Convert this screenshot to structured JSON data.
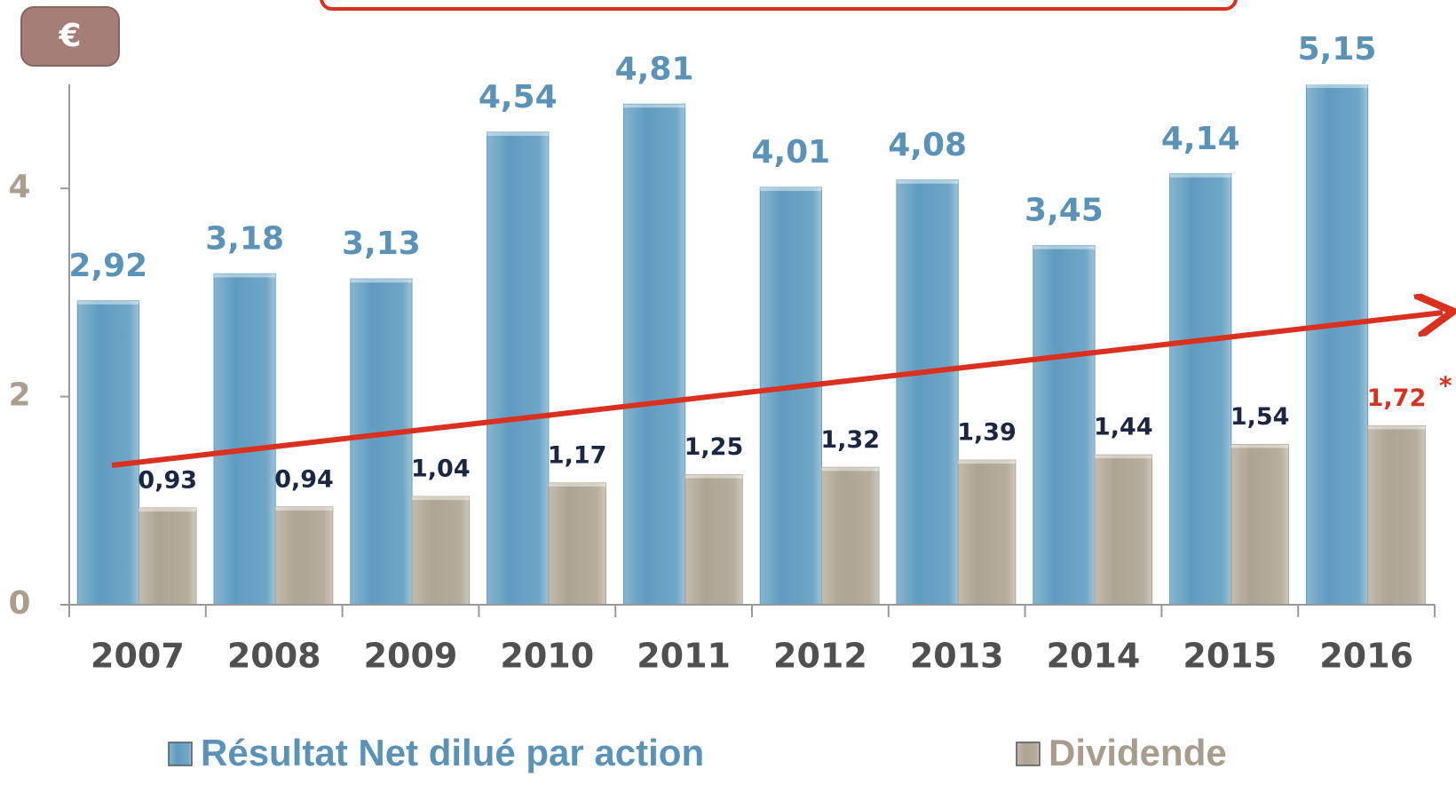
{
  "chart_data": {
    "type": "bar",
    "badge": "€",
    "categories": [
      "2007",
      "2008",
      "2009",
      "2010",
      "2011",
      "2012",
      "2013",
      "2014",
      "2015",
      "2016"
    ],
    "series": [
      {
        "name": "Résultat Net dilué par action",
        "color": "#5f9cc0",
        "label_color": "#5b93b8",
        "values": [
          2.92,
          3.18,
          3.13,
          4.54,
          4.81,
          4.01,
          4.08,
          3.45,
          4.14,
          5.15
        ],
        "value_labels": [
          "2,92",
          "3,18",
          "3,13",
          "4,54",
          "4,81",
          "4,01",
          "4,08",
          "3,45",
          "4,14",
          "5,15"
        ]
      },
      {
        "name": "Dividende",
        "color": "#aea493",
        "label_color": "#1b2742",
        "values": [
          0.93,
          0.94,
          1.04,
          1.17,
          1.25,
          1.32,
          1.39,
          1.44,
          1.54,
          1.72
        ],
        "value_labels": [
          "0,93",
          "0,94",
          "1,04",
          "1,17",
          "1,25",
          "1,32",
          "1,39",
          "1,44",
          "1,54",
          "1,72"
        ]
      }
    ],
    "annotations": [
      {
        "text": "*",
        "series": 1,
        "index": 9,
        "color": "#d9301f"
      }
    ],
    "ylim": [
      0,
      5
    ],
    "yticks": [
      0,
      2,
      4
    ],
    "legend": "bottom"
  }
}
